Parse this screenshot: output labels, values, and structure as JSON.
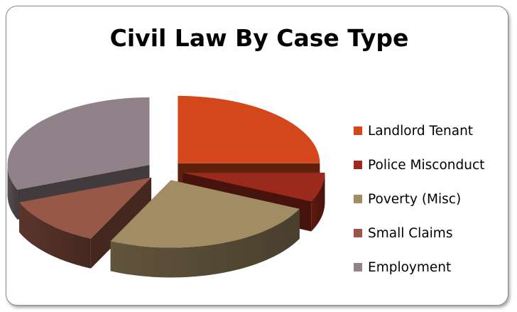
{
  "chart_data": {
    "type": "pie",
    "title": "Civil Law By Case Type",
    "slices": [
      {
        "label": "Landlord Tenant",
        "value": 25,
        "color": "#D4471A"
      },
      {
        "label": "Police Misconduct",
        "value": 7,
        "color": "#9C2A1C"
      },
      {
        "label": "Poverty (Misc)",
        "value": 25,
        "color": "#A28C64"
      },
      {
        "label": "Small Claims",
        "value": 12,
        "color": "#985848"
      },
      {
        "label": "Employment",
        "value": 31,
        "color": "#908288"
      }
    ],
    "exploded": true,
    "three_d": true,
    "legend_position": "right"
  }
}
